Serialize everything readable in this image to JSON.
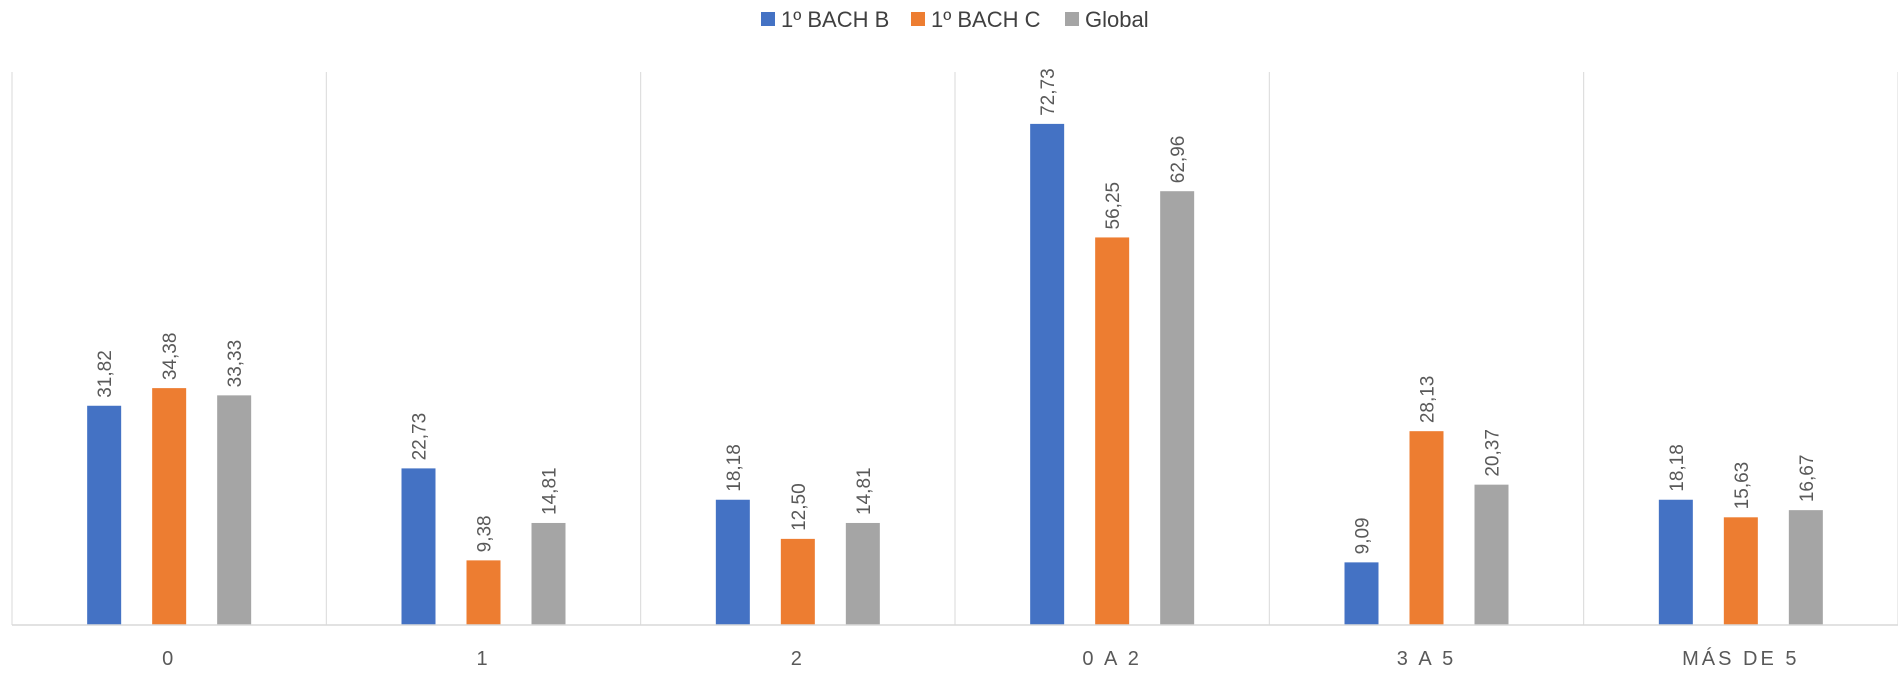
{
  "chart_data": {
    "type": "bar",
    "title": "",
    "xlabel": "",
    "ylabel": "",
    "ylim": [
      0,
      80
    ],
    "grid": false,
    "legend": "top-center",
    "categories": [
      "0",
      "1",
      "2",
      "0 A 2",
      "3 A 5",
      "MÁS DE 5"
    ],
    "series": [
      {
        "name": "1º BACH B",
        "color": "#4472C4",
        "values": [
          31.82,
          22.73,
          18.18,
          72.73,
          9.09,
          18.18
        ],
        "labels": [
          "31,82",
          "22,73",
          "18,18",
          "72,73",
          "9,09",
          "18,18"
        ]
      },
      {
        "name": "1º BACH C",
        "color": "#ED7D31",
        "values": [
          34.38,
          9.38,
          12.5,
          56.25,
          28.13,
          15.63
        ],
        "labels": [
          "34,38",
          "9,38",
          "12,50",
          "56,25",
          "28,13",
          "15,63"
        ]
      },
      {
        "name": "Global",
        "color": "#A5A5A5",
        "values": [
          33.33,
          14.81,
          14.81,
          62.96,
          20.37,
          16.67
        ],
        "labels": [
          "33,33",
          "14,81",
          "14,81",
          "62,96",
          "20,37",
          "16,67"
        ]
      }
    ]
  }
}
